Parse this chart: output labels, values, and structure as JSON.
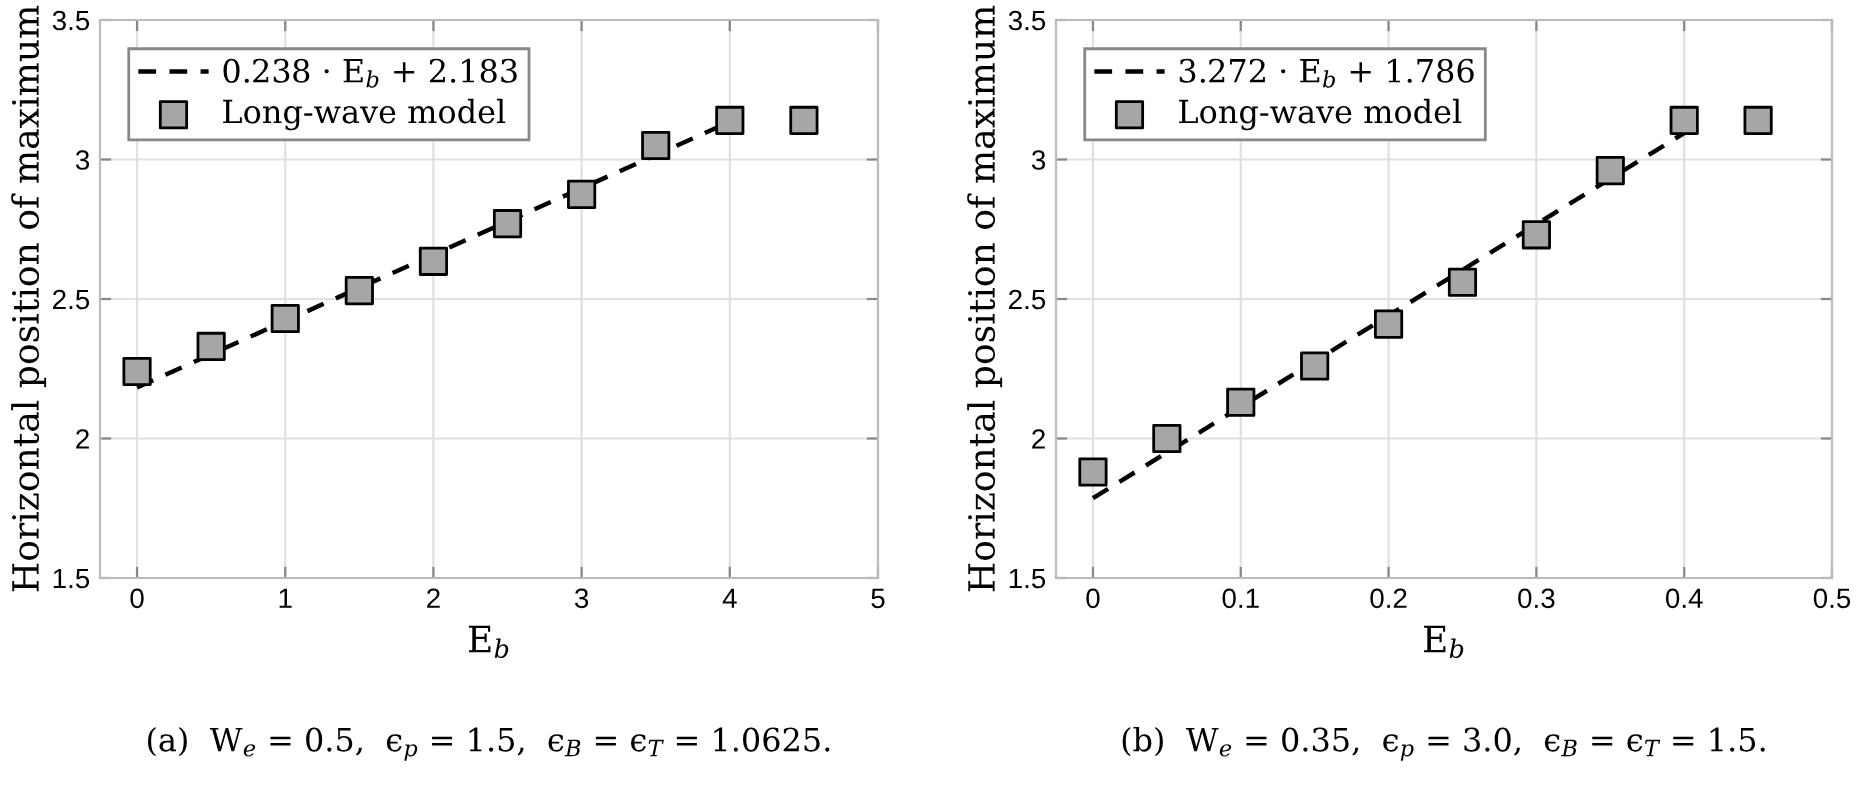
{
  "chart_data": [
    {
      "type": "scatter",
      "xlabel": "E$_{b}$",
      "ylabel": "Horizontal position of maximum",
      "xlim": [
        -0.25,
        5
      ],
      "ylim": [
        1.5,
        3.5
      ],
      "xticks": [
        0,
        1,
        2,
        3,
        4,
        5
      ],
      "yticks": [
        1.5,
        2,
        2.5,
        3,
        3.5
      ],
      "grid": true,
      "legend": "top left",
      "annotations": [
        "(a)  W$_{e}$ = 0.5,  ϵ$_{p}$ = 1.5,  ϵ$_{B}$ = ϵ$_{T}$ = 1.0625."
      ],
      "series": [
        {
          "name": "0.238 · E$_{b}$ + 2.183",
          "type": "line",
          "line_style": "dashed",
          "color": "#000000",
          "x": [
            0,
            4
          ],
          "values": [
            2.183,
            3.135
          ]
        },
        {
          "name": "Long-wave model",
          "marker": "square",
          "color": "#a6a6a6",
          "x": [
            0,
            0.5,
            1,
            1.5,
            2,
            2.5,
            3,
            3.5,
            4,
            4.5
          ],
          "values": [
            2.24,
            2.33,
            2.43,
            2.53,
            2.635,
            2.77,
            2.875,
            3.05,
            3.14,
            3.14
          ]
        }
      ]
    },
    {
      "type": "scatter",
      "xlabel": "E$_{b}$",
      "ylabel": "Horizontal position of maximum",
      "xlim": [
        -0.025,
        0.5
      ],
      "ylim": [
        1.5,
        3.5
      ],
      "xticks": [
        0,
        0.1,
        0.2,
        0.3,
        0.4,
        0.5
      ],
      "yticks": [
        1.5,
        2,
        2.5,
        3,
        3.5
      ],
      "grid": true,
      "legend": "top left",
      "annotations": [
        "(b)  W$_{e}$ = 0.35,  ϵ$_{p}$ = 3.0,  ϵ$_{B}$ = ϵ$_{T}$ = 1.5."
      ],
      "series": [
        {
          "name": "3.272 · E$_{b}$ + 1.786",
          "type": "line",
          "line_style": "dashed",
          "color": "#000000",
          "x": [
            0,
            0.4
          ],
          "values": [
            1.786,
            3.095
          ]
        },
        {
          "name": "Long-wave model",
          "marker": "square",
          "color": "#a6a6a6",
          "x": [
            0,
            0.05,
            0.1,
            0.15,
            0.2,
            0.25,
            0.3,
            0.35,
            0.4,
            0.45
          ],
          "values": [
            1.88,
            2.0,
            2.13,
            2.26,
            2.41,
            2.56,
            2.73,
            2.96,
            3.14,
            3.14
          ]
        }
      ]
    }
  ]
}
